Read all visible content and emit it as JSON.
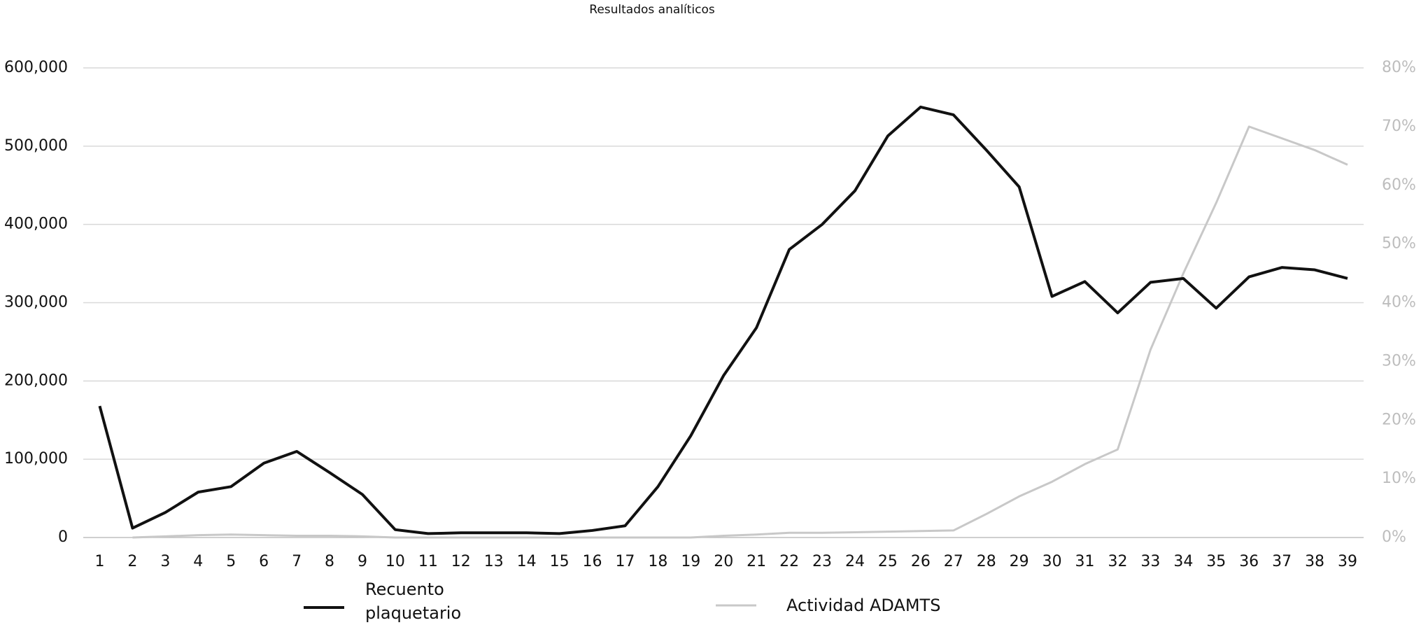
{
  "chart_data": {
    "type": "line",
    "title": "Resultados analíticos",
    "categories": [
      "1",
      "2",
      "3",
      "4",
      "5",
      "6",
      "7",
      "8",
      "9",
      "10",
      "11",
      "12",
      "13",
      "14",
      "15",
      "16",
      "17",
      "18",
      "19",
      "20",
      "21",
      "22",
      "23",
      "24",
      "25",
      "26",
      "27",
      "28",
      "29",
      "30",
      "31",
      "32",
      "33",
      "34",
      "35",
      "36",
      "37",
      "38",
      "39"
    ],
    "series": [
      {
        "name": "Recuento plaquetario",
        "color": "#111111",
        "values": [
          168000,
          12000,
          32000,
          58000,
          65000,
          95000,
          110000,
          83000,
          55000,
          10000,
          5000,
          6000,
          6000,
          6000,
          5000,
          9000,
          15000,
          65000,
          130000,
          207000,
          268000,
          368000,
          400000,
          443000,
          513000,
          550000,
          540000,
          495000,
          448000,
          308000,
          327000,
          287000,
          326000,
          331000,
          293000,
          333000,
          345000,
          342000,
          331000
        ]
      },
      {
        "name": "Actividad ADAMTS",
        "color": "#c8c8c8",
        "axis": "y2",
        "values": [
          null,
          0,
          0.2,
          0.4,
          0.5,
          0.4,
          0.3,
          0.3,
          0.2,
          0,
          0,
          0,
          0,
          0,
          0,
          0,
          0,
          0,
          0,
          0.3,
          0.5,
          0.8,
          0.8,
          0.9,
          1,
          1.1,
          1.2,
          4,
          7,
          9.5,
          12.5,
          15,
          32,
          45,
          57,
          70,
          68,
          66,
          63.5
        ]
      }
    ],
    "ylim": [
      0,
      600000
    ],
    "yticks": [
      0,
      {
        "value": 100000,
        "label": "100,000"
      },
      {
        "value": 200000,
        "label": "200,000"
      },
      {
        "value": 300000,
        "label": "300,000"
      },
      {
        "value": 400000,
        "label": "400,000"
      },
      {
        "value": 500000,
        "label": "500,000"
      },
      {
        "value": 600000,
        "label": "600,000"
      }
    ],
    "y2lim": [
      0,
      80
    ],
    "y2ticks": [
      {
        "value": 0,
        "label": "0%"
      },
      {
        "value": 10,
        "label": "10%"
      },
      {
        "value": 20,
        "label": "20%"
      },
      {
        "value": 30,
        "label": "30%"
      },
      {
        "value": 40,
        "label": "40%"
      },
      {
        "value": 50,
        "label": "50%"
      },
      {
        "value": 60,
        "label": "60%"
      },
      {
        "value": 70,
        "label": "70%"
      },
      {
        "value": 80,
        "label": "80%"
      }
    ],
    "grid": true
  }
}
